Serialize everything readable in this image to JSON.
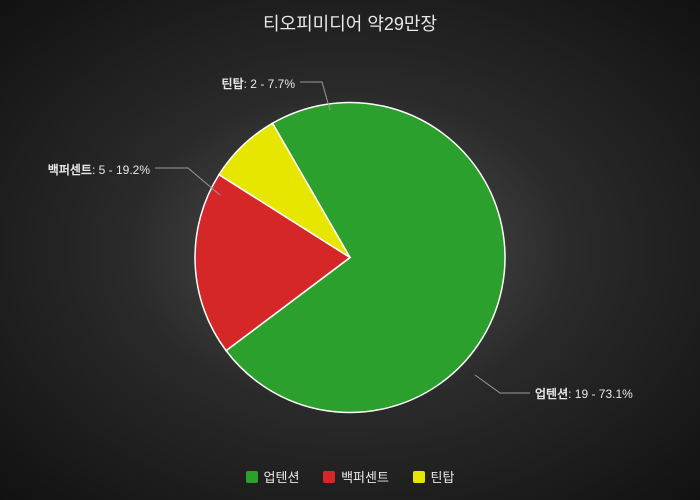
{
  "chart": {
    "type": "pie",
    "title": "티오피미디어 약29만장",
    "title_fontsize": 18,
    "title_color": "#e8e8e8",
    "background": "radial-gradient(#555555, #111111)",
    "label_color": "#e8e8e8",
    "label_fontsize": 12,
    "legend_fontsize": 13,
    "pie_radius": 155,
    "start_angle_deg": -30,
    "slices": [
      {
        "name": "업텐션",
        "value": 19,
        "pct": "73.1%",
        "color": "#2ca02c",
        "stroke": "#ffffff"
      },
      {
        "name": "백퍼센트",
        "value": 5,
        "pct": "19.2%",
        "color": "#d62728",
        "stroke": "#ffffff"
      },
      {
        "name": "틴탑",
        "value": 2,
        "pct": "7.7%",
        "color": "#e6e600",
        "stroke": "#ffffff"
      }
    ],
    "legend": [
      {
        "name": "업텐션",
        "color": "#2ca02c"
      },
      {
        "name": "백퍼센트",
        "color": "#d62728"
      },
      {
        "name": "틴탑",
        "color": "#e6e600"
      }
    ],
    "labels": {
      "uptension": {
        "text_name": "업텐션",
        "text_rest": ": 19 - 73.1%"
      },
      "baekpercent": {
        "text_name": "백퍼센트",
        "text_rest": ": 5 - 19.2%"
      },
      "teentop": {
        "text_name": "틴탑",
        "text_rest": ": 2 - 7.7%"
      }
    }
  }
}
